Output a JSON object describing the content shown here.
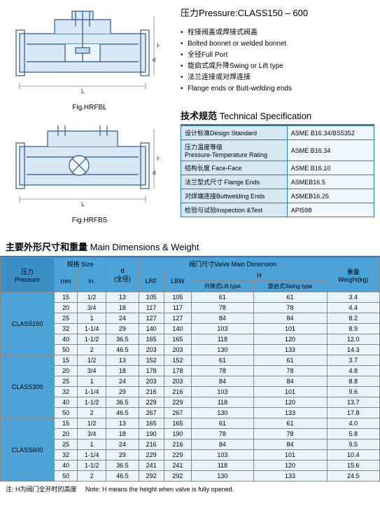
{
  "pressure_title": "压力Pressure:CLASS150 – 600",
  "bullets": [
    "栓接阀盖或焊接式阀盖",
    "Bolted bonnet or welded bonnet",
    "全径Full Port",
    "旋启式或升降Swing or Lift type",
    "法兰连接或对焊连接",
    "Flange ends or Butt-welding ends"
  ],
  "fig1": "Fig.HRFBL",
  "fig2": "Fig.HRFBS",
  "tech_title_cn": "技术规范",
  "tech_title_en": "Technical Specification",
  "tech_rows": [
    {
      "l": "设计标准Design Standard",
      "r": "ASME B16.34/BS5352"
    },
    {
      "l": "压力温度等级\nPressure-Temperature Rating",
      "r": "ASME B16.34"
    },
    {
      "l": "结构长度 Face-Face",
      "r": "ASME B16.10"
    },
    {
      "l": "法兰型式尺寸 Flange Ends",
      "r": "ASMEB16.5"
    },
    {
      "l": "对焊端连接Buttwelding Ends",
      "r": "ASMEB16.25"
    },
    {
      "l": "检验与试验Inspection &Test",
      "r": "API598"
    }
  ],
  "main_title_cn": "主要外形尺寸和重量",
  "main_title_en": "Main Dimensions & Weight",
  "headers": {
    "pressure": "压力\nPressure",
    "size": "规格 Size",
    "mm": "mm",
    "in": "in.",
    "d": "d\n(全径)",
    "valve": "阀门尺寸Valve Main Dimension",
    "lrf": "LRF",
    "lbw": "LBW",
    "h": "H",
    "h1": "升降式Lift type",
    "h2": "旋启式Swing type",
    "weight": "重量\nWeight(kg)"
  },
  "groups": [
    {
      "p": "CLASS150",
      "rows": [
        [
          "15",
          "1/2",
          "13",
          "105",
          "105",
          "61",
          "61",
          "3.4"
        ],
        [
          "20",
          "3/4",
          "18",
          "117",
          "117",
          "78",
          "78",
          "4.4"
        ],
        [
          "25",
          "1",
          "24",
          "127",
          "127",
          "84",
          "84",
          "8.2"
        ],
        [
          "32",
          "1-1/4",
          "29",
          "140",
          "140",
          "103",
          "101",
          "8.9"
        ],
        [
          "40",
          "1-1/2",
          "36.5",
          "165",
          "165",
          "118",
          "120",
          "12.0"
        ],
        [
          "50",
          "2",
          "46.5",
          "203",
          "203",
          "130",
          "133",
          "14.3"
        ]
      ]
    },
    {
      "p": "CLASS300",
      "rows": [
        [
          "15",
          "1/2",
          "13",
          "152",
          "152",
          "61",
          "61",
          "3.7"
        ],
        [
          "20",
          "3/4",
          "18",
          "178",
          "178",
          "78",
          "78",
          "4.8"
        ],
        [
          "25",
          "1",
          "24",
          "203",
          "203",
          "84",
          "84",
          "8.8"
        ],
        [
          "32",
          "1-1/4",
          "29",
          "216",
          "216",
          "103",
          "101",
          "9.6"
        ],
        [
          "40",
          "1-1/2",
          "36.5",
          "229",
          "229",
          "118",
          "120",
          "13.7"
        ],
        [
          "50",
          "2",
          "46.5",
          "267",
          "267",
          "130",
          "133",
          "17.8"
        ]
      ]
    },
    {
      "p": "CLASS600",
      "rows": [
        [
          "15",
          "1/2",
          "13",
          "165",
          "165",
          "61",
          "61",
          "4.0"
        ],
        [
          "20",
          "3/4",
          "18",
          "190",
          "190",
          "78",
          "78",
          "5.8"
        ],
        [
          "25",
          "1",
          "24",
          "216",
          "216",
          "84",
          "84",
          "9.5"
        ],
        [
          "32",
          "1-1/4",
          "29",
          "229",
          "229",
          "103",
          "101",
          "10.4"
        ],
        [
          "40",
          "1-1/2",
          "36.5",
          "241",
          "241",
          "118",
          "120",
          "15.6"
        ],
        [
          "50",
          "2",
          "46.5",
          "292",
          "292",
          "130",
          "133",
          "24.5"
        ]
      ]
    }
  ],
  "note_cn": "注:  H为阀门全开时的高度",
  "note_en": "Note: H means the height when valve is fully opened.",
  "colors": {
    "header_bg": "#4ba3d8",
    "border": "#2a7fb8",
    "cell_light": "#d5e8f4"
  }
}
